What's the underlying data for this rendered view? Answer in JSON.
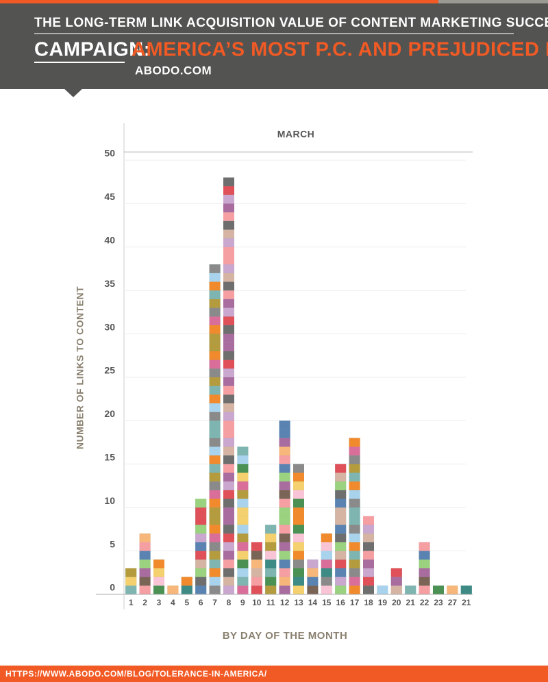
{
  "header": {
    "kicker": "THE LONG-TERM LINK ACQUISITION VALUE OF CONTENT MARKETING SUCCESS",
    "campaign_label": "CAMPAIGN:",
    "campaign_name": "AMERICA’S MOST P.C. AND PREJUDICED PLACES",
    "site": "ABODO.COM"
  },
  "footer": {
    "url": "HTTPS://WWW.ABODO.COM/BLOG/TOLERANCE-IN-AMERICA/"
  },
  "chart_data": {
    "type": "bar",
    "subtitle": "MARCH",
    "xlabel": "BY DAY OF THE MONTH",
    "ylabel": "NUMBER OF LINKS TO CONTENT",
    "categories": [
      "1",
      "2",
      "3",
      "4",
      "5",
      "6",
      "7",
      "8",
      "9",
      "10",
      "11",
      "12",
      "13",
      "14",
      "15",
      "16",
      "17",
      "18",
      "19",
      "20",
      "21",
      "22",
      "23",
      "27",
      "21"
    ],
    "values": [
      3,
      7,
      4,
      1,
      2,
      11,
      38,
      48,
      17,
      6,
      8,
      20,
      15,
      4,
      7,
      15,
      18,
      9,
      1,
      3,
      1,
      6,
      1,
      1,
      1
    ],
    "ylim": [
      0,
      50
    ],
    "yticks": [
      0,
      5,
      10,
      15,
      20,
      25,
      30,
      35,
      40,
      45,
      50
    ],
    "grid": true,
    "palette": [
      "#7fb5b0",
      "#f7b77a",
      "#8a8a8a",
      "#e05059",
      "#f4d06f",
      "#9bd27f",
      "#a9d3ec",
      "#f59fa3",
      "#3e8a84",
      "#c9a7ce",
      "#b39b3e",
      "#7a6456",
      "#f08a2c",
      "#d5b4a4",
      "#4a9153",
      "#5b83b2",
      "#d86e99",
      "#a96c9e",
      "#f9c4d6",
      "#6e6e6e"
    ]
  }
}
